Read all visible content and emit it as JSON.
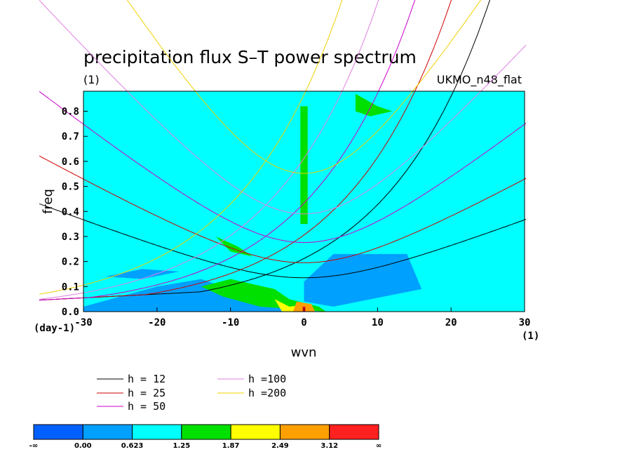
{
  "chart_data": {
    "type": "heatmap",
    "title": "precipitation flux S–T power spectrum",
    "subtitle_left": "(1)",
    "subtitle_right": "UKMO_n48_flat",
    "xlabel": "wvn",
    "ylabel": "freq",
    "x_unit": "(1)",
    "y_unit": "(day-1)",
    "xlim": [
      -30,
      30
    ],
    "ylim": [
      0,
      0.88
    ],
    "x_ticks": [
      "-30",
      "-20",
      "-10",
      "0",
      "10",
      "20",
      "30"
    ],
    "x_tick_values": [
      -30,
      -20,
      -10,
      0,
      10,
      20,
      30
    ],
    "y_ticks": [
      "0.0",
      "0.1",
      "0.2",
      "0.3",
      "0.4",
      "0.5",
      "0.6",
      "0.7",
      "0.8"
    ],
    "y_tick_values": [
      0,
      0.1,
      0.2,
      0.3,
      0.4,
      0.5,
      0.6,
      0.7,
      0.8
    ],
    "background_level_color": "#00ffff",
    "regions": [
      {
        "level": "0.00–0.623",
        "color": "#00a0ff",
        "points": [
          [
            0,
            0.12
          ],
          [
            4,
            0.23
          ],
          [
            14,
            0.23
          ],
          [
            16,
            0.09
          ],
          [
            4,
            0.02
          ],
          [
            0,
            0.04
          ]
        ]
      },
      {
        "level": "0.00–0.623",
        "color": "#00a0ff",
        "points": [
          [
            -30,
            0.02
          ],
          [
            -20,
            0.1
          ],
          [
            -14,
            0.13
          ],
          [
            -10,
            0.09
          ],
          [
            -4,
            0.03
          ],
          [
            -1,
            0.0
          ],
          [
            -30,
            0.0
          ]
        ]
      },
      {
        "level": "0.00–0.623",
        "color": "#00a0ff",
        "points": [
          [
            -27,
            0.14
          ],
          [
            -22,
            0.17
          ],
          [
            -17,
            0.16
          ],
          [
            -22,
            0.13
          ]
        ]
      },
      {
        "level": "1.25–1.87",
        "color": "#00e000",
        "points": [
          [
            -10,
            0.13
          ],
          [
            -4,
            0.09
          ],
          [
            -2,
            0.05
          ],
          [
            2,
            0.02
          ],
          [
            3,
            0.0
          ],
          [
            -6,
            0.02
          ],
          [
            -11,
            0.06
          ],
          [
            -14,
            0.1
          ]
        ]
      },
      {
        "level": "1.25–1.87",
        "color": "#00e000",
        "points": [
          [
            -0.5,
            0.82
          ],
          [
            0.5,
            0.82
          ],
          [
            0.5,
            0.35
          ],
          [
            -0.5,
            0.35
          ]
        ]
      },
      {
        "level": "1.25–1.87",
        "color": "#00e000",
        "points": [
          [
            7,
            0.87
          ],
          [
            10,
            0.82
          ],
          [
            12,
            0.8
          ],
          [
            9,
            0.78
          ],
          [
            7,
            0.8
          ]
        ]
      },
      {
        "level": "1.25–1.87",
        "color": "#00e000",
        "points": [
          [
            -12,
            0.3
          ],
          [
            -9,
            0.26
          ],
          [
            -7,
            0.22
          ],
          [
            -10,
            0.24
          ]
        ]
      },
      {
        "level": "1.87–2.49",
        "color": "#ffff00",
        "points": [
          [
            -4,
            0.05
          ],
          [
            -2,
            0.02
          ],
          [
            1,
            0.03
          ],
          [
            1,
            0.0
          ],
          [
            -3,
            0.0
          ]
        ]
      },
      {
        "level": "2.49–3.12",
        "color": "#ffa000",
        "points": [
          [
            -1,
            0.04
          ],
          [
            1,
            0.03
          ],
          [
            1.5,
            0.0
          ],
          [
            -1.5,
            0.0
          ]
        ]
      },
      {
        "level": "3.12–∞",
        "color": "#ff2020",
        "points": [
          [
            -0.2,
            0.02
          ],
          [
            0.2,
            0.02
          ],
          [
            0.2,
            0.0
          ],
          [
            -0.2,
            0.0
          ]
        ]
      }
    ],
    "series": [
      {
        "name": "h = 12",
        "h": 12,
        "color": "#000000"
      },
      {
        "name": "h = 25",
        "h": 25,
        "color": "#d00000"
      },
      {
        "name": "h = 50",
        "h": 50,
        "color": "#cc00cc"
      },
      {
        "name": "h =100",
        "h": 100,
        "color": "#e080e0"
      },
      {
        "name": "h =200",
        "h": 200,
        "color": "#f0d000"
      }
    ],
    "colorbar": {
      "colors": [
        "#0060ff",
        "#00a0ff",
        "#00ffff",
        "#00e000",
        "#ffff00",
        "#ffa000",
        "#ff2020"
      ],
      "labels": [
        "-∞",
        "0.00",
        "0.623",
        "1.25",
        "1.87",
        "2.49",
        "3.12",
        "∞"
      ]
    }
  }
}
